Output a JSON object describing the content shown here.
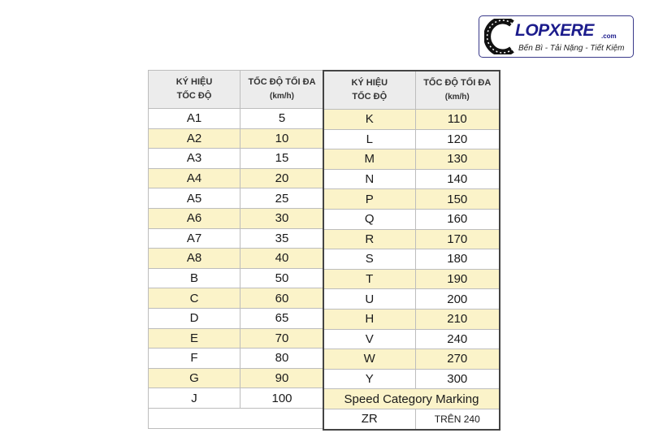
{
  "logo": {
    "brand": "LOPXERE",
    "suffix": ".com",
    "slogan": "Bến Bì - Tải Nặng - Tiết Kiệm",
    "icon": "tire-icon",
    "color": "#1c1c8c"
  },
  "headers": {
    "symbol": "KÝ HIỆU",
    "symbol2": "TỐC ĐỘ",
    "speed": "TỐC ĐỘ TỐI ĐA",
    "unit": "(km/h)"
  },
  "colors": {
    "highlight": "#fbf3c9",
    "header": "#ececec"
  },
  "left_rows": [
    {
      "code": "A1",
      "speed": "5"
    },
    {
      "code": "A2",
      "speed": "10"
    },
    {
      "code": "A3",
      "speed": "15"
    },
    {
      "code": "A4",
      "speed": "20"
    },
    {
      "code": "A5",
      "speed": "25"
    },
    {
      "code": "A6",
      "speed": "30"
    },
    {
      "code": "A7",
      "speed": "35"
    },
    {
      "code": "A8",
      "speed": "40"
    },
    {
      "code": "B",
      "speed": "50"
    },
    {
      "code": "C",
      "speed": "60"
    },
    {
      "code": "D",
      "speed": "65"
    },
    {
      "code": "E",
      "speed": "70"
    },
    {
      "code": "F",
      "speed": "80"
    },
    {
      "code": "G",
      "speed": "90"
    },
    {
      "code": "J",
      "speed": "100"
    }
  ],
  "right_rows": [
    {
      "code": "K",
      "speed": "110"
    },
    {
      "code": "L",
      "speed": "120"
    },
    {
      "code": "M",
      "speed": "130"
    },
    {
      "code": "N",
      "speed": "140"
    },
    {
      "code": "P",
      "speed": "150"
    },
    {
      "code": "Q",
      "speed": "160"
    },
    {
      "code": "R",
      "speed": "170"
    },
    {
      "code": "S",
      "speed": "180"
    },
    {
      "code": "T",
      "speed": "190"
    },
    {
      "code": "U",
      "speed": "200"
    },
    {
      "code": "H",
      "speed": "210"
    },
    {
      "code": "V",
      "speed": "240"
    },
    {
      "code": "W",
      "speed": "270"
    },
    {
      "code": "Y",
      "speed": "300"
    }
  ],
  "category": {
    "label": "Speed Category Marking",
    "code": "ZR",
    "speed": "TRÊN 240"
  }
}
